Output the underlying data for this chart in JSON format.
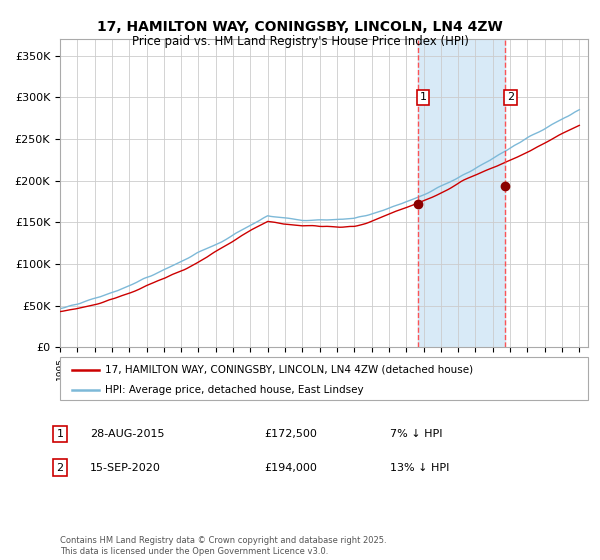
{
  "title_line1": "17, HAMILTON WAY, CONINGSBY, LINCOLN, LN4 4ZW",
  "title_line2": "Price paid vs. HM Land Registry's House Price Index (HPI)",
  "ylabel_ticks": [
    "£0",
    "£50K",
    "£100K",
    "£150K",
    "£200K",
    "£250K",
    "£300K",
    "£350K"
  ],
  "ytick_values": [
    0,
    50000,
    100000,
    150000,
    200000,
    250000,
    300000,
    350000
  ],
  "ylim": [
    0,
    370000
  ],
  "year_start": 1995,
  "year_end": 2025,
  "transaction1": {
    "date": "28-AUG-2015",
    "price": 172500,
    "year": 2015.66,
    "label": "1",
    "hpi_pct": "7% ↓ HPI"
  },
  "transaction2": {
    "date": "15-SEP-2020",
    "price": 194000,
    "year": 2020.71,
    "label": "2",
    "hpi_pct": "13% ↓ HPI"
  },
  "legend_line1": "17, HAMILTON WAY, CONINGSBY, LINCOLN, LN4 4ZW (detached house)",
  "legend_line2": "HPI: Average price, detached house, East Lindsey",
  "footer": "Contains HM Land Registry data © Crown copyright and database right 2025.\nThis data is licensed under the Open Government Licence v3.0.",
  "hpi_color": "#7db9d8",
  "price_color": "#cc0000",
  "marker_color": "#8b0000",
  "vline_color": "#ff4444",
  "bg_shaded_color": "#d8eaf7",
  "grid_color": "#cccccc",
  "box_color": "#cc0000",
  "title_fontsize": 10,
  "subtitle_fontsize": 8.5
}
